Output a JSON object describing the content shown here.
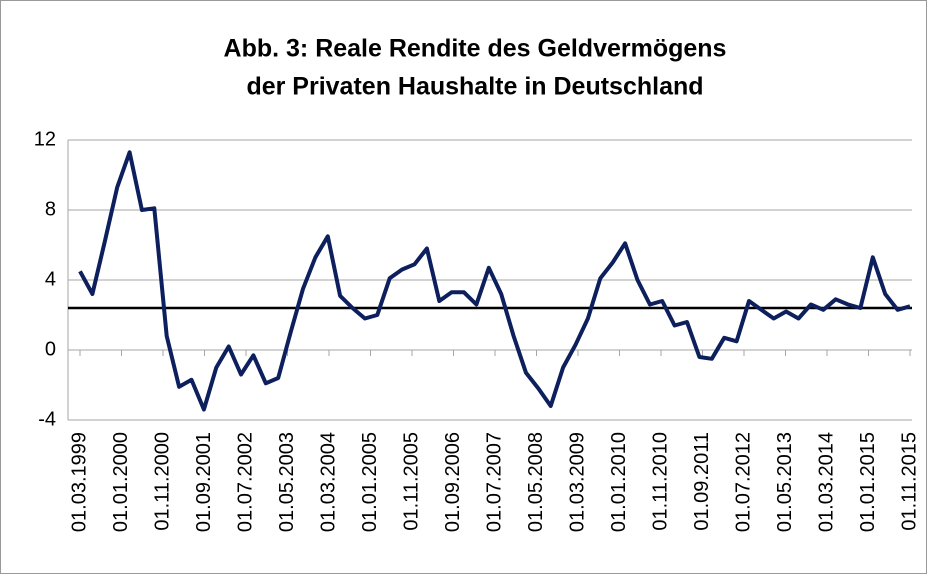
{
  "chart_data": {
    "type": "line",
    "title": [
      "Abb. 3: Reale Rendite des Geldvermögens",
      "der Privaten Haushalte in Deutschland"
    ],
    "xticks": [
      "01.03.1999",
      "01.01.2000",
      "01.11.2000",
      "01.09.2001",
      "01.07.2002",
      "01.05.2003",
      "01.03.2004",
      "01.01.2005",
      "01.11.2005",
      "01.09.2006",
      "01.07.2007",
      "01.05.2008",
      "01.03.2009",
      "01.01.2010",
      "01.11.2010",
      "01.09.2011",
      "01.07.2012",
      "01.05.2013",
      "01.03.2014",
      "01.01.2015",
      "01.11.2015"
    ],
    "values": [
      4.5,
      3.2,
      6.2,
      9.3,
      11.3,
      8.0,
      8.1,
      0.8,
      -2.1,
      -1.7,
      -3.4,
      -1.0,
      0.2,
      -1.4,
      -0.3,
      -1.9,
      -1.6,
      1.0,
      3.5,
      5.3,
      6.5,
      3.1,
      2.4,
      1.8,
      2.0,
      4.1,
      4.6,
      4.9,
      5.8,
      2.8,
      3.3,
      3.3,
      2.6,
      4.7,
      3.2,
      0.8,
      -1.3,
      -2.2,
      -3.2,
      -1.0,
      0.3,
      1.8,
      4.1,
      5.0,
      6.1,
      4.0,
      2.6,
      2.8,
      1.4,
      1.6,
      -0.4,
      -0.5,
      0.7,
      0.5,
      2.8,
      2.3,
      1.8,
      2.2,
      1.8,
      2.6,
      2.3,
      2.9,
      2.6,
      2.4,
      5.3,
      3.2,
      2.3,
      2.5
    ],
    "color": "#0d1f5c",
    "reference_line": 2.4,
    "reference_color": "#000000",
    "ylim": [
      -4,
      12
    ],
    "yticks": [
      -4,
      0,
      4,
      8,
      12
    ],
    "grid": true
  }
}
